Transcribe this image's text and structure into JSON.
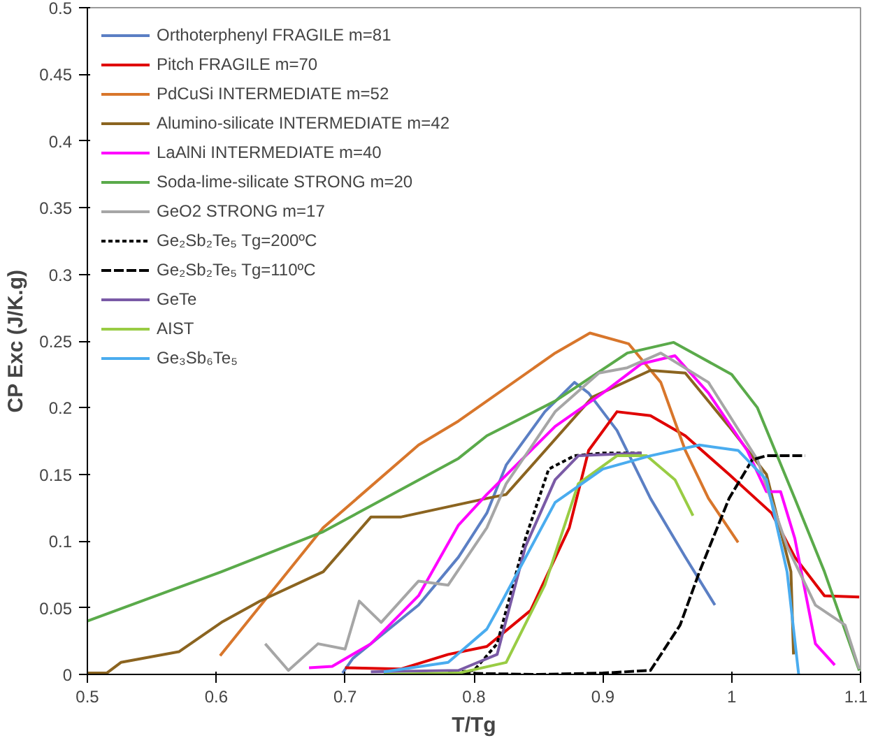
{
  "chart_data": {
    "type": "line",
    "xlabel": "T/Tg",
    "ylabel": "CP Exc (J/K.g)",
    "xlim": [
      0.5,
      1.1
    ],
    "xticks": [
      0.5,
      0.6,
      0.7,
      0.8,
      0.9,
      1,
      1.1
    ],
    "ylim": [
      0,
      0.5
    ],
    "yticks": [
      0,
      0.05,
      0.1,
      0.15,
      0.2,
      0.25,
      0.3,
      0.35,
      0.4,
      0.45,
      0.5
    ],
    "grid": false,
    "legend": "top left",
    "marker": "none",
    "line_style": "solid",
    "series": [
      {
        "name": "Orthoterphenyl FRAGILE m=81",
        "color": "#5b7fc4",
        "x": [
          0.698,
          0.706,
          0.757,
          0.788,
          0.81,
          0.825,
          0.855,
          0.878,
          0.889,
          0.911,
          0.937,
          0.964,
          0.987
        ],
        "values": [
          0.001,
          0.012,
          0.052,
          0.088,
          0.121,
          0.157,
          0.197,
          0.219,
          0.211,
          0.183,
          0.132,
          0.088,
          0.052
        ]
      },
      {
        "name": "Pitch FRAGILE m=70",
        "color": "#e00000",
        "x": [
          0.7,
          0.743,
          0.78,
          0.81,
          0.844,
          0.874,
          0.889,
          0.911,
          0.937,
          0.964,
          0.998,
          1.031,
          1.049,
          1.072,
          1.099
        ],
        "values": [
          0.005,
          0.004,
          0.015,
          0.021,
          0.048,
          0.11,
          0.168,
          0.197,
          0.194,
          0.179,
          0.15,
          0.121,
          0.088,
          0.059,
          0.058
        ]
      },
      {
        "name": "PdCuSi INTERMEDIATE m=52",
        "color": "#d8762b",
        "x": [
          0.603,
          0.683,
          0.757,
          0.788,
          0.81,
          0.863,
          0.89,
          0.92,
          0.945,
          0.964,
          0.982,
          1.005
        ],
        "values": [
          0.014,
          0.11,
          0.172,
          0.19,
          0.205,
          0.241,
          0.256,
          0.248,
          0.219,
          0.168,
          0.132,
          0.099
        ]
      },
      {
        "name": "Alumino-silicate INTERMEDIATE m=42",
        "color": "#8b6420",
        "x": [
          0.5,
          0.515,
          0.526,
          0.571,
          0.604,
          0.634,
          0.683,
          0.72,
          0.743,
          0.81,
          0.825,
          0.892,
          0.937,
          0.964,
          0.998,
          1.027,
          1.046,
          1.048
        ],
        "values": [
          0.001,
          0.001,
          0.009,
          0.017,
          0.039,
          0.055,
          0.077,
          0.118,
          0.118,
          0.132,
          0.135,
          0.208,
          0.228,
          0.226,
          0.186,
          0.15,
          0.077,
          0.015
        ]
      },
      {
        "name": "LaAlNi INTERMEDIATE m=40",
        "color": "#ff00ff",
        "x": [
          0.672,
          0.69,
          0.72,
          0.757,
          0.788,
          0.81,
          0.863,
          0.9,
          0.93,
          0.956,
          0.982,
          1.012,
          1.027,
          1.038,
          1.049,
          1.065,
          1.08
        ],
        "values": [
          0.005,
          0.006,
          0.023,
          0.059,
          0.112,
          0.135,
          0.186,
          0.211,
          0.233,
          0.239,
          0.211,
          0.168,
          0.137,
          0.137,
          0.102,
          0.023,
          0.007
        ]
      },
      {
        "name": "Soda-lime-silicate STRONG m=20",
        "color": "#5aaa4a",
        "x": [
          0.5,
          0.604,
          0.683,
          0.788,
          0.81,
          0.863,
          0.919,
          0.955,
          1.0,
          1.02,
          1.049,
          1.072,
          1.099
        ],
        "values": [
          0.04,
          0.077,
          0.107,
          0.162,
          0.179,
          0.205,
          0.241,
          0.249,
          0.225,
          0.2,
          0.132,
          0.077,
          0.003
        ]
      },
      {
        "name": "GeO2 STRONG m=17",
        "color": "#a6a6a6",
        "x": [
          0.638,
          0.656,
          0.679,
          0.7,
          0.711,
          0.728,
          0.757,
          0.78,
          0.81,
          0.825,
          0.863,
          0.897,
          0.919,
          0.945,
          0.982,
          1.02,
          1.043,
          1.065,
          1.088,
          1.099
        ],
        "values": [
          0.023,
          0.003,
          0.023,
          0.019,
          0.055,
          0.039,
          0.07,
          0.067,
          0.11,
          0.143,
          0.197,
          0.226,
          0.23,
          0.241,
          0.219,
          0.161,
          0.096,
          0.052,
          0.037,
          0.004
        ]
      },
      {
        "name": "Ge₂Sb₂Te₅ Tg=200ºC",
        "color": "#000000",
        "line_style": "dotted",
        "x": [
          0.78,
          0.8,
          0.818,
          0.84,
          0.858,
          0.878,
          0.9,
          0.93
        ],
        "values": [
          0.001,
          0.003,
          0.023,
          0.102,
          0.154,
          0.164,
          0.166,
          0.166
        ]
      },
      {
        "name": "Ge₂Sb₂Te₅ Tg=110ºC",
        "color": "#000000",
        "line_style": "dashed",
        "x": [
          0.78,
          0.85,
          0.9,
          0.937,
          0.96,
          0.975,
          0.998,
          1.016,
          1.027,
          1.057
        ],
        "values": [
          0.001,
          0.0,
          0.001,
          0.003,
          0.037,
          0.077,
          0.132,
          0.161,
          0.164,
          0.164
        ]
      },
      {
        "name": "GeTe",
        "color": "#7a5aa6",
        "x": [
          0.72,
          0.788,
          0.818,
          0.84,
          0.863,
          0.881,
          0.93
        ],
        "values": [
          0.002,
          0.003,
          0.015,
          0.096,
          0.146,
          0.164,
          0.166
        ]
      },
      {
        "name": "AIST",
        "color": "#99cc44",
        "x": [
          0.73,
          0.788,
          0.825,
          0.855,
          0.881,
          0.911,
          0.934,
          0.956,
          0.97
        ],
        "values": [
          0.0,
          0.001,
          0.009,
          0.067,
          0.143,
          0.164,
          0.164,
          0.146,
          0.119
        ]
      },
      {
        "name": "Ge₃Sb₆Te₅",
        "color": "#4aacef",
        "x": [
          0.73,
          0.78,
          0.81,
          0.818,
          0.863,
          0.9,
          0.937,
          0.975,
          1.005,
          1.027,
          1.043,
          1.052
        ],
        "values": [
          0.002,
          0.009,
          0.034,
          0.048,
          0.129,
          0.154,
          0.164,
          0.172,
          0.168,
          0.146,
          0.077,
          0.0
        ]
      }
    ]
  }
}
